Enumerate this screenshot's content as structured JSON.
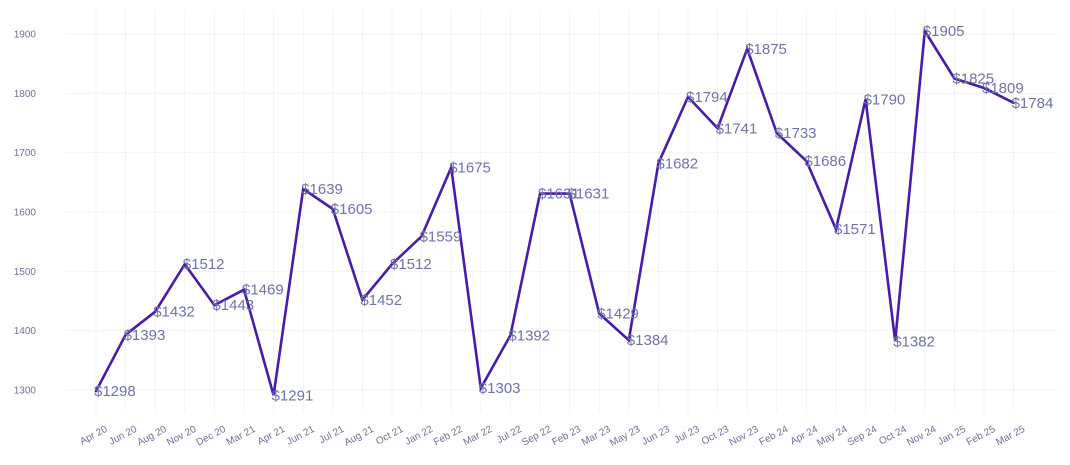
{
  "chart_data": {
    "type": "line",
    "title": "",
    "xlabel": "",
    "ylabel": "",
    "ylim": [
      1260,
      1940
    ],
    "y_ticks": [
      1300,
      1400,
      1500,
      1600,
      1700,
      1800,
      1900
    ],
    "y_tick_labels": [
      "1300",
      "1400",
      "1500",
      "1600",
      "1700",
      "1800",
      "1900"
    ],
    "grid": true,
    "legend": "none",
    "label_prefix": "$",
    "categories": [
      "Apr 20",
      "Jun 20",
      "Aug 20",
      "Nov 20",
      "Dec 20",
      "Mar 21",
      "Apr 21",
      "Jun 21",
      "Jul 21",
      "Aug 21",
      "Oct 21",
      "Jan 22",
      "Feb 22",
      "Mar 22",
      "Jul 22",
      "Sep 22",
      "Feb 23",
      "Mar 23",
      "May 23",
      "Jun 23",
      "Jul 23",
      "Oct 23",
      "Nov 23",
      "Feb 24",
      "Apr 24",
      "May 24",
      "Sep 24",
      "Oct 24",
      "Nov 24",
      "Jan 25",
      "Feb 25",
      "Mar 25"
    ],
    "series": [
      {
        "color": "#4a1aa8",
        "values": [
          1298,
          1393,
          1432,
          1512,
          1443,
          1469,
          1291,
          1639,
          1605,
          1452,
          1512,
          1559,
          1675,
          1303,
          1392,
          1631,
          1631,
          1429,
          1384,
          1682,
          1794,
          1741,
          1875,
          1733,
          1686,
          1571,
          1790,
          1382,
          1905,
          1825,
          1809,
          1784
        ]
      }
    ],
    "data_labels": [
      "$1298",
      "$1393",
      "$1432",
      "$1512",
      "$1443",
      "$1469",
      "$1291",
      "$1639",
      "$1605",
      "$1452",
      "$1512",
      "$1559",
      "$1675",
      "$1303",
      "$1392",
      "$1631",
      "$1631",
      "$1429",
      "$1384",
      "$1682",
      "$1794",
      "$1741",
      "$1875",
      "$1733",
      "$1686",
      "$1571",
      "$1790",
      "$1382",
      "$1905",
      "$1825",
      "$1809",
      "$1784"
    ]
  }
}
